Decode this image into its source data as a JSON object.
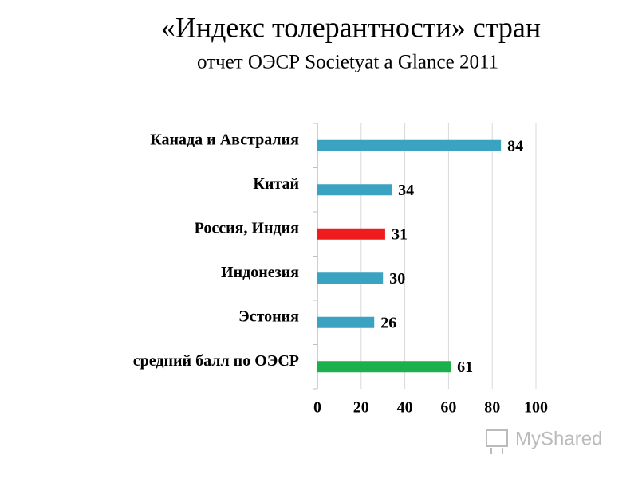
{
  "chart_data": {
    "type": "hbar",
    "title": "«Индекс  толерантности» стран",
    "subtitle": "отчет ОЭСР Societyat a Glance 2011",
    "categories": [
      "Канада и Австралия",
      "Китай",
      "Россия, Индия",
      "Индонезия",
      "Эстония",
      "средний балл по ОЭСР"
    ],
    "values": [
      84,
      34,
      31,
      30,
      26,
      61
    ],
    "colors": [
      "#3aa3c2",
      "#3aa3c2",
      "#ee1c1c",
      "#3aa3c2",
      "#3aa3c2",
      "#1cb04a"
    ],
    "xlim": [
      0,
      100
    ],
    "xticks": [
      0,
      20,
      40,
      60,
      80,
      100
    ],
    "grid": true,
    "watermark": "MyShared"
  }
}
